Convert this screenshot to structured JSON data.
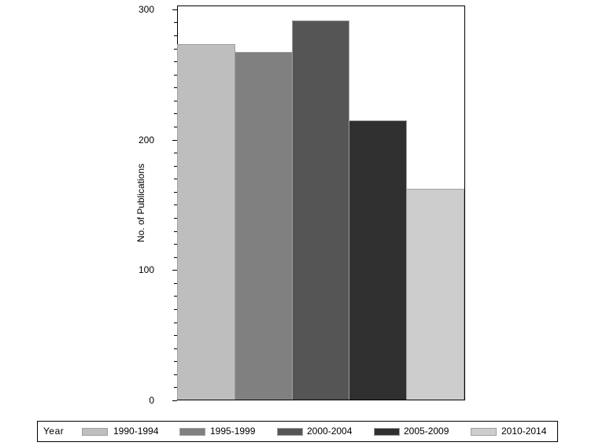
{
  "chart_data": {
    "type": "bar",
    "title": "",
    "xlabel": "",
    "ylabel": "No. of Publications",
    "ylim": [
      0,
      303
    ],
    "yticks": [
      0,
      100,
      200,
      300
    ],
    "grid": false,
    "legend_position": "bottom",
    "legend_title": "Year",
    "categories": [
      "1990-1994",
      "1995-1999",
      "2000-2004",
      "2005-2009",
      "2010-2014"
    ],
    "values": [
      273,
      267,
      291,
      214,
      162
    ],
    "colors": [
      "#bebebe",
      "#808080",
      "#555555",
      "#303030",
      "#cdcdcd"
    ]
  },
  "axis": {
    "ylabel": "No. of Publications",
    "ticks": [
      "0",
      "100",
      "200",
      "300"
    ]
  },
  "legend": {
    "title": "Year",
    "items": [
      {
        "label": "1990-1994",
        "color": "#bebebe"
      },
      {
        "label": "1995-1999",
        "color": "#808080"
      },
      {
        "label": "2000-2004",
        "color": "#555555"
      },
      {
        "label": "2005-2009",
        "color": "#303030"
      },
      {
        "label": "2010-2014",
        "color": "#cdcdcd"
      }
    ]
  }
}
